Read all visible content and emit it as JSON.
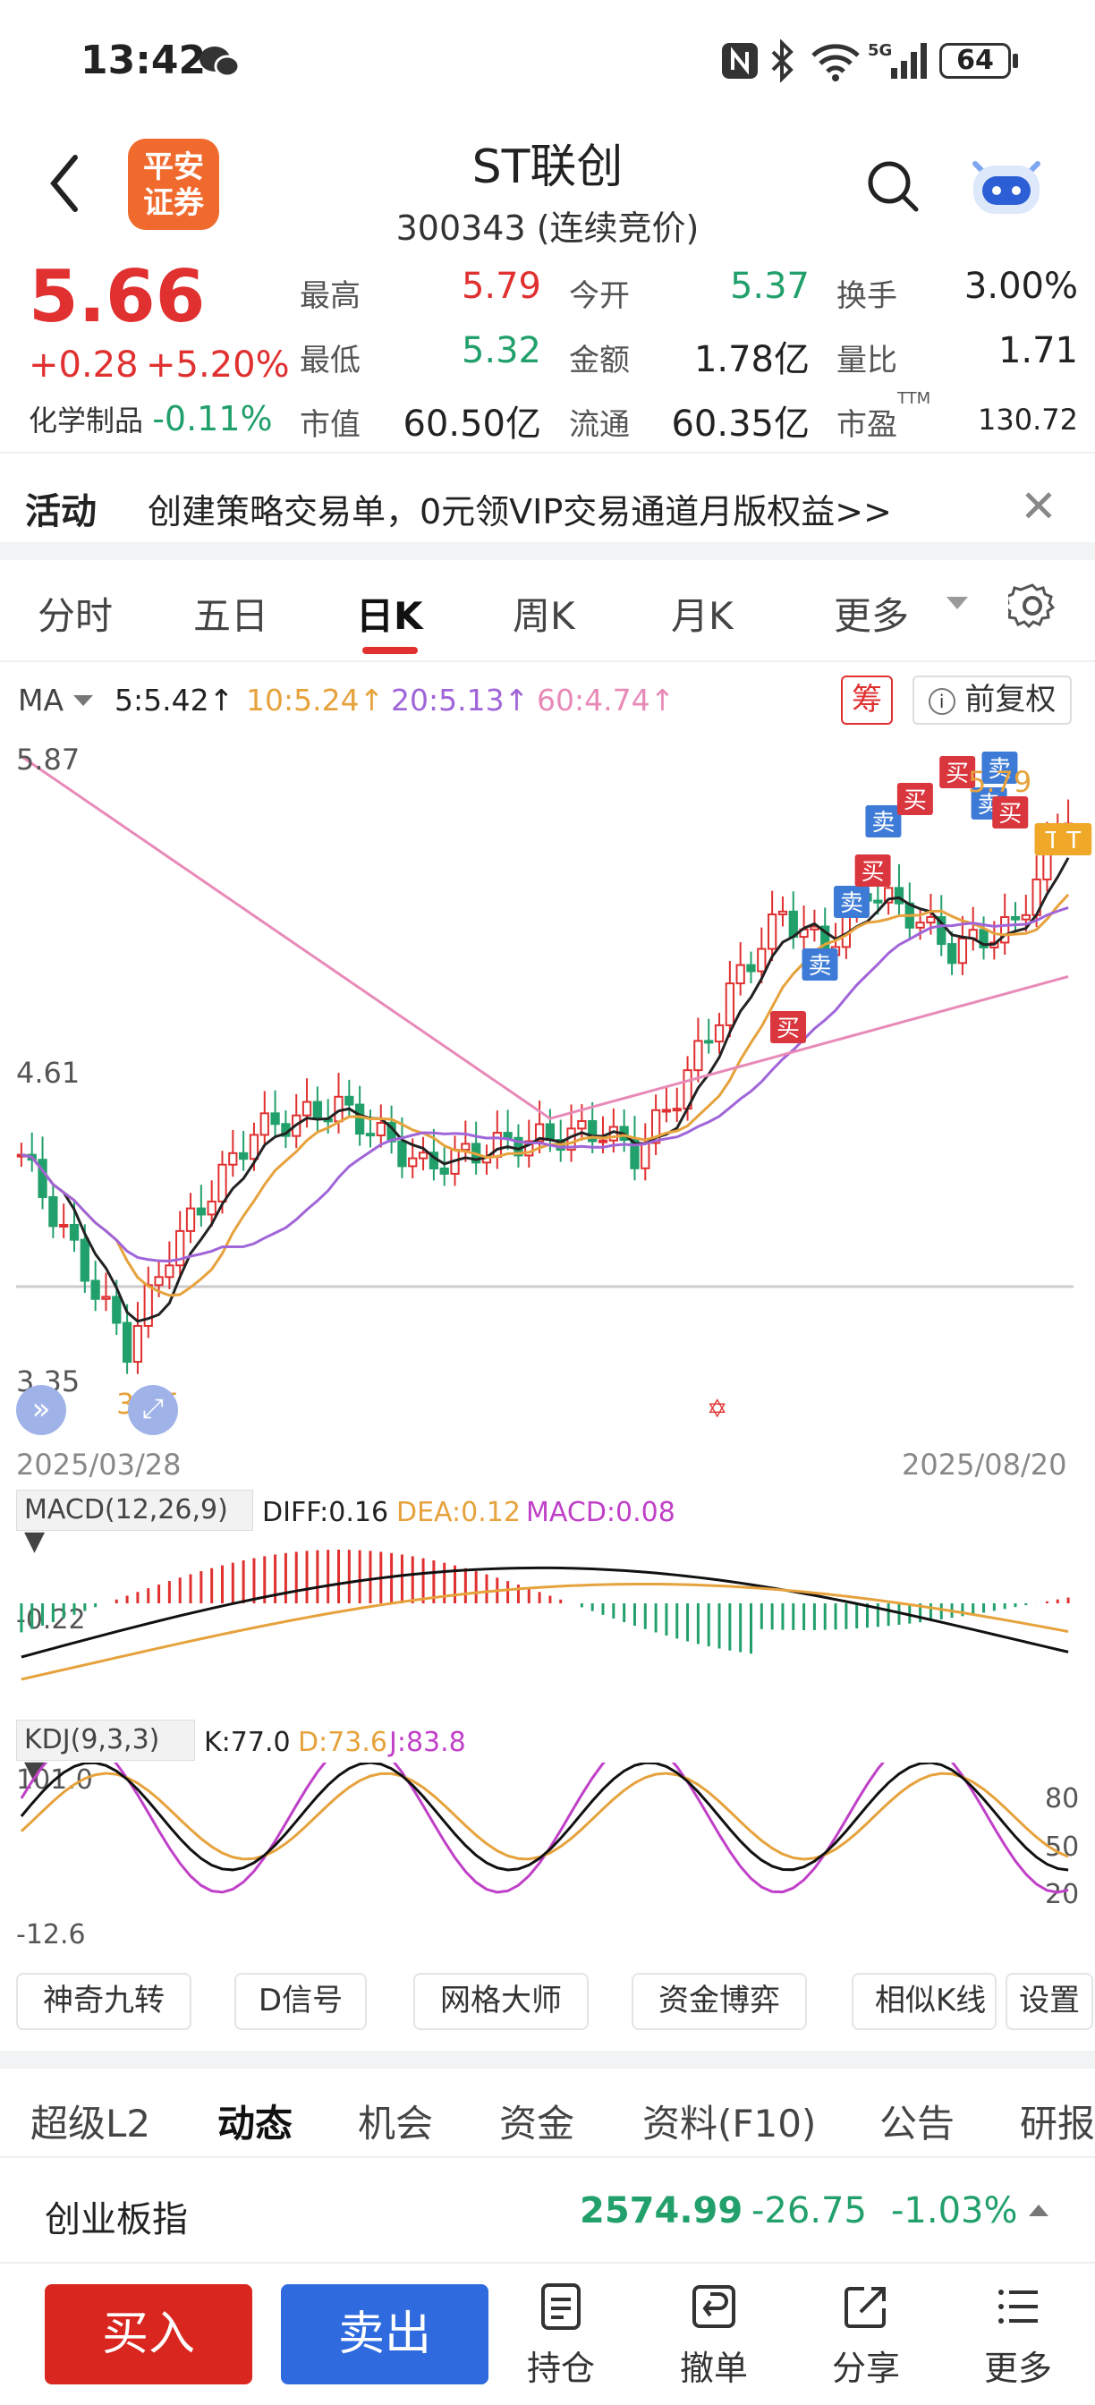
{
  "status_bar": {
    "time": "13:42",
    "battery": "64"
  },
  "header": {
    "title": "ST联创",
    "subtitle": "300343 (连续竞价)",
    "logo_text": "平安\n证券"
  },
  "quote": {
    "price": "5.66",
    "change": "+0.28",
    "change_pct": "+5.20%",
    "sector_label": "化学制品",
    "sector_change": "-0.11%",
    "stats": [
      {
        "label": "最高",
        "value": "5.79",
        "color": "red"
      },
      {
        "label": "今开",
        "value": "5.37",
        "color": "green"
      },
      {
        "label": "换手",
        "value": "3.00%",
        "color": "dark"
      },
      {
        "label": "最低",
        "value": "5.32",
        "color": "green"
      },
      {
        "label": "金额",
        "value": "1.78亿",
        "color": "dark"
      },
      {
        "label": "量比",
        "value": "1.71",
        "color": "dark"
      },
      {
        "label": "市值",
        "value": "60.50亿",
        "color": "dark"
      },
      {
        "label": "流通",
        "value": "60.35亿",
        "color": "dark"
      },
      {
        "label": "市盈",
        "value": "130.72",
        "color": "dark",
        "suffix": "TTM"
      }
    ]
  },
  "banner": {
    "tag": "活动",
    "text": "创建策略交易单，0元领VIP交易通道月版权益>>"
  },
  "period_tabs": [
    "分时",
    "五日",
    "日K",
    "周K",
    "月K",
    "更多"
  ],
  "active_tab": "日K",
  "ma": {
    "label": "MA",
    "ma5": "5:5.42↑",
    "ma10": "10:5.24↑",
    "ma20": "20:5.13↑",
    "ma60": "60:4.74↑",
    "chou": "筹",
    "fuquan": "前复权"
  },
  "kchart": {
    "high_label": "5.87",
    "mid_label": "4.61",
    "low_label": "3.35",
    "low_mark": "3.35",
    "peak_mark": "5.79",
    "start_date": "2025/03/28",
    "end_date": "2025/08/20",
    "signals": {
      "buy": "买",
      "sell": "卖",
      "t": "T"
    }
  },
  "macd": {
    "select": "MACD(12,26,9)",
    "diff": "DIFF:0.16",
    "dea": "DEA:0.12",
    "macd": "MACD:0.08",
    "axis": "-0.22"
  },
  "kdj": {
    "select": "KDJ(9,3,3)",
    "k": "K:77.0",
    "d": "D:73.6",
    "j": "J:83.8",
    "max": "101.0",
    "min": "-12.6",
    "l80": "80",
    "l50": "50",
    "l20": "20"
  },
  "tools": [
    "神奇九转",
    "D信号",
    "网格大师",
    "资金博弈",
    "相似K线",
    "设置"
  ],
  "bottom_tabs": [
    "超级L2",
    "动态",
    "机会",
    "资金",
    "资料(F10)",
    "公告",
    "研报"
  ],
  "bottom_active": "动态",
  "index": {
    "name": "创业板指",
    "value": "2574.99",
    "change": "-26.75",
    "pct": "-1.03%"
  },
  "actions": {
    "buy": "买入",
    "sell": "卖出",
    "hold": "持仓",
    "cancel": "撤单",
    "share": "分享",
    "more": "更多"
  },
  "colors": {
    "up": "#e03030",
    "down": "#22a06b",
    "ma5": "#222222",
    "ma10": "#e6a23c",
    "ma20": "#a065d8",
    "ma60": "#e88ab8"
  }
}
